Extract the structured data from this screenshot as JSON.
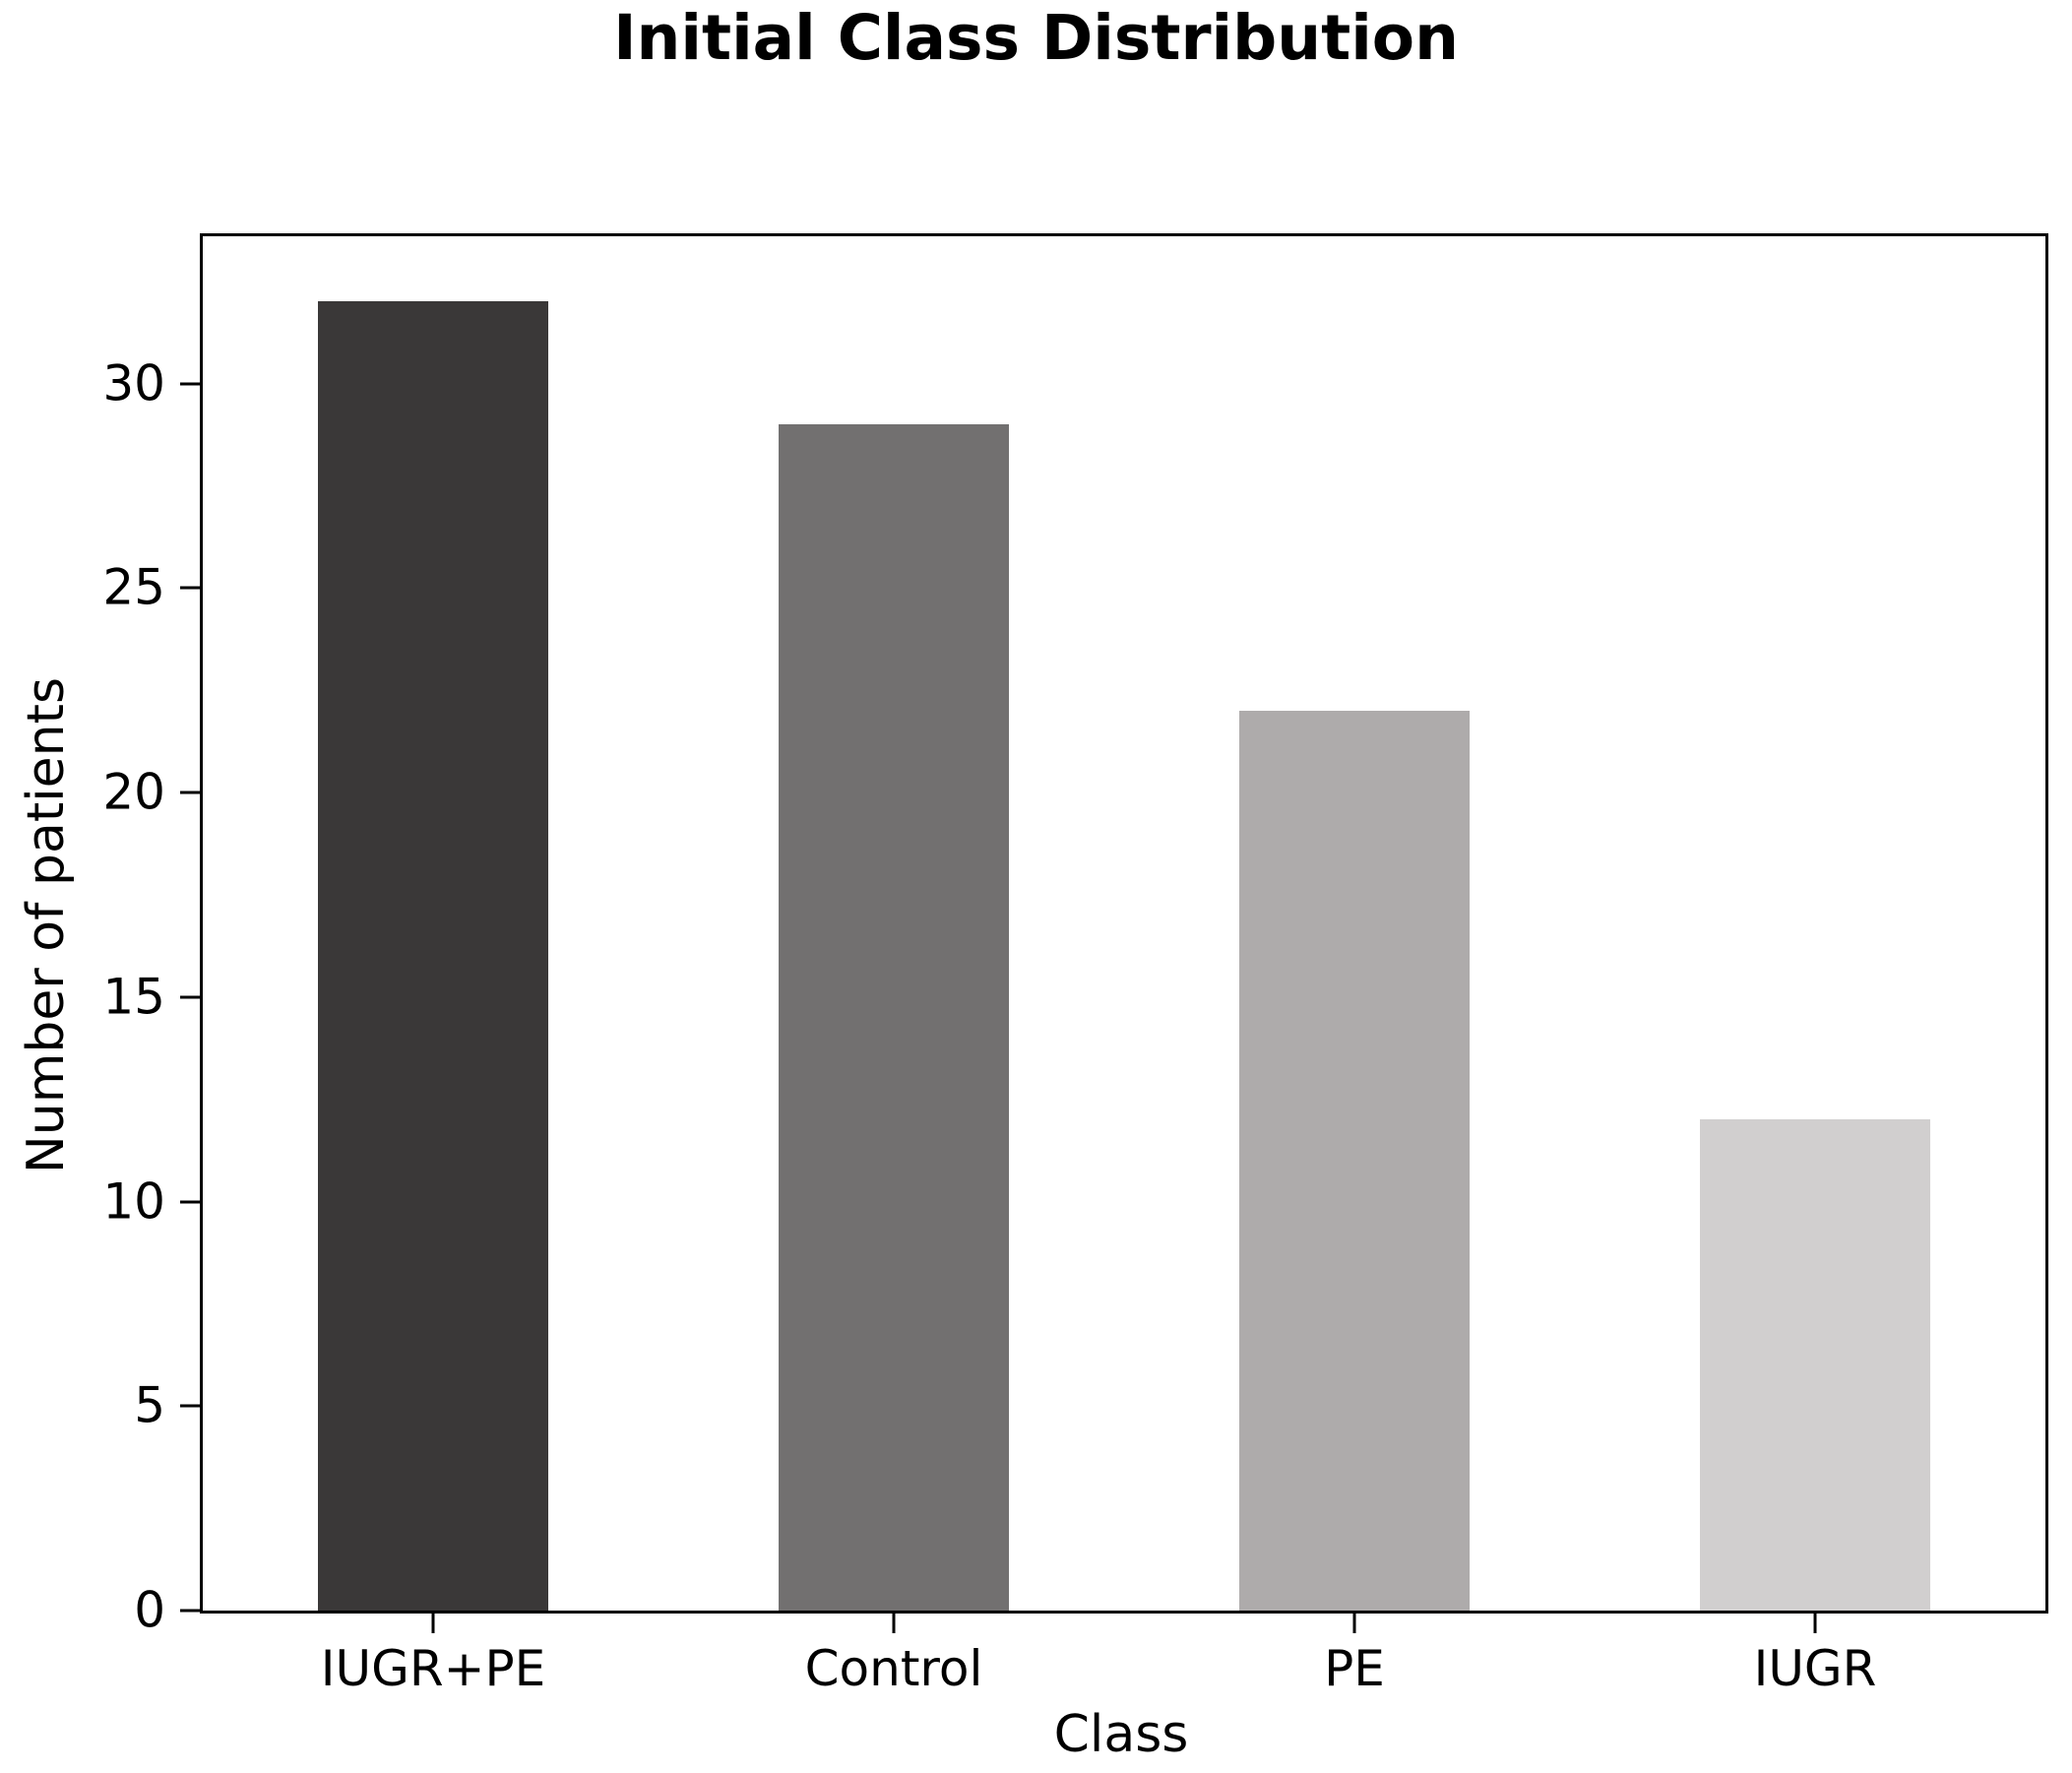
{
  "chart_data": {
    "type": "bar",
    "title": "Initial Class Distribution",
    "xlabel": "Class",
    "ylabel": "Number of patients",
    "categories": [
      "IUGR+PE",
      "Control",
      "PE",
      "IUGR"
    ],
    "values": [
      32,
      29,
      22,
      12
    ],
    "bar_colors": [
      "#3a3838",
      "#727070",
      "#aeabab",
      "#d1cfcf"
    ],
    "ylim": [
      0,
      33.6
    ],
    "yticks": [
      0,
      5,
      10,
      15,
      20,
      25,
      30
    ],
    "bar_width_frac": 0.5,
    "grid": false,
    "legend": "none",
    "spine_color": "#000000",
    "text_color": "#000000",
    "background_color": "#ffffff"
  }
}
